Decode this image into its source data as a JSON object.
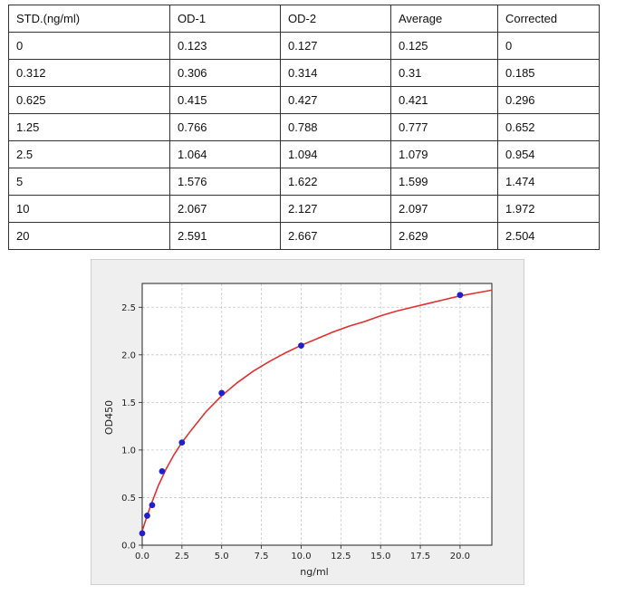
{
  "table": {
    "headers": [
      "STD.(ng/ml)",
      "OD-1",
      "OD-2",
      "Average",
      "Corrected"
    ],
    "rows": [
      [
        "0",
        "0.123",
        "0.127",
        "0.125",
        "0"
      ],
      [
        "0.312",
        "0.306",
        "0.314",
        "0.31",
        "0.185"
      ],
      [
        "0.625",
        "0.415",
        "0.427",
        "0.421",
        "0.296"
      ],
      [
        "1.25",
        "0.766",
        "0.788",
        "0.777",
        "0.652"
      ],
      [
        "2.5",
        "1.064",
        "1.094",
        "1.079",
        "0.954"
      ],
      [
        "5",
        "1.576",
        "1.622",
        "1.599",
        "1.474"
      ],
      [
        "10",
        "2.067",
        "2.127",
        "2.097",
        "1.972"
      ],
      [
        "20",
        "2.591",
        "2.667",
        "2.629",
        "2.504"
      ]
    ]
  },
  "chart_data": {
    "type": "scatter",
    "xlabel": "ng/ml",
    "ylabel": "OD450",
    "xlim": [
      0,
      22
    ],
    "ylim": [
      0,
      2.75
    ],
    "xticks": [
      "0.0",
      "2.5",
      "5.0",
      "7.5",
      "10.0",
      "12.5",
      "15.0",
      "17.5",
      "20.0"
    ],
    "yticks": [
      "0.0",
      "0.5",
      "1.0",
      "1.5",
      "2.0",
      "2.5"
    ],
    "grid": true,
    "points": {
      "x": [
        0,
        0.312,
        0.625,
        1.25,
        2.5,
        5,
        10,
        20
      ],
      "y": [
        0.125,
        0.31,
        0.421,
        0.777,
        1.079,
        1.599,
        2.097,
        2.629
      ]
    },
    "fit_curve": {
      "x": [
        0,
        0.25,
        0.5,
        0.75,
        1,
        1.5,
        2,
        2.5,
        3,
        4,
        5,
        6,
        7,
        8,
        9,
        10,
        11,
        12,
        13,
        14,
        15,
        16,
        17,
        18,
        19,
        20,
        21,
        22
      ],
      "y": [
        0.15,
        0.28,
        0.4,
        0.51,
        0.62,
        0.8,
        0.95,
        1.08,
        1.19,
        1.4,
        1.57,
        1.71,
        1.83,
        1.93,
        2.02,
        2.1,
        2.17,
        2.24,
        2.3,
        2.35,
        2.41,
        2.46,
        2.5,
        2.54,
        2.58,
        2.62,
        2.65,
        2.68
      ]
    },
    "point_color": "#1f1fd1",
    "curve_color": "#e03030"
  }
}
